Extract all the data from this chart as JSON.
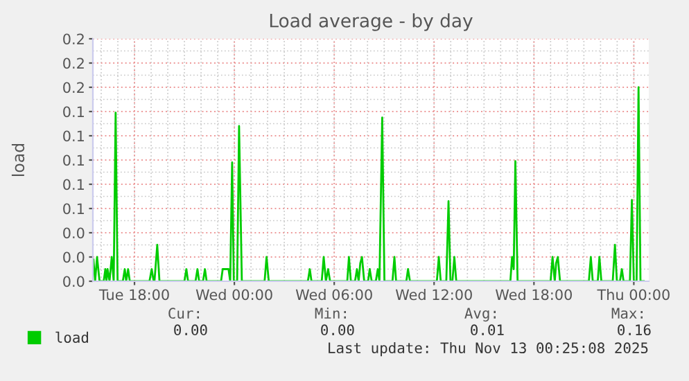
{
  "chart_data": {
    "type": "line",
    "title": "Load average - by day",
    "ylabel": "load",
    "x": [
      "2025-11-11T15:32",
      "2025-11-11T15:38",
      "2025-11-11T15:45",
      "2025-11-11T15:54",
      "2025-11-11T16:09",
      "2025-11-11T16:15",
      "2025-11-11T16:19",
      "2025-11-11T16:23",
      "2025-11-11T16:30",
      "2025-11-11T16:38",
      "2025-11-11T16:45",
      "2025-11-11T16:52",
      "2025-11-11T16:59",
      "2025-11-11T17:18",
      "2025-11-11T17:25",
      "2025-11-11T17:30",
      "2025-11-11T17:37",
      "2025-11-11T17:43",
      "2025-11-11T18:54",
      "2025-11-11T19:02",
      "2025-11-11T19:09",
      "2025-11-11T19:12",
      "2025-11-11T19:22",
      "2025-11-11T19:30",
      "2025-11-11T21:00",
      "2025-11-11T21:07",
      "2025-11-11T21:13",
      "2025-11-11T21:40",
      "2025-11-11T21:47",
      "2025-11-11T21:53",
      "2025-11-11T22:07",
      "2025-11-11T22:14",
      "2025-11-11T22:20",
      "2025-11-11T23:12",
      "2025-11-11T23:18",
      "2025-11-11T23:33",
      "2025-11-11T23:39",
      "2025-11-11T23:45",
      "2025-11-11T23:52",
      "2025-11-11T23:58",
      "2025-11-12T00:10",
      "2025-11-12T00:17",
      "2025-11-12T00:27",
      "2025-11-12T01:49",
      "2025-11-12T01:56",
      "2025-11-12T02:04",
      "2025-11-12T04:25",
      "2025-11-12T04:32",
      "2025-11-12T04:38",
      "2025-11-12T05:15",
      "2025-11-12T05:22",
      "2025-11-12T05:30",
      "2025-11-12T05:38",
      "2025-11-12T05:45",
      "2025-11-12T06:47",
      "2025-11-12T06:53",
      "2025-11-12T07:00",
      "2025-11-12T07:15",
      "2025-11-12T07:22",
      "2025-11-12T07:28",
      "2025-11-12T07:34",
      "2025-11-12T07:40",
      "2025-11-12T07:48",
      "2025-11-12T08:02",
      "2025-11-12T08:08",
      "2025-11-12T08:15",
      "2025-11-12T08:30",
      "2025-11-12T08:37",
      "2025-11-12T08:43",
      "2025-11-12T08:53",
      "2025-11-12T09:01",
      "2025-11-12T09:30",
      "2025-11-12T09:37",
      "2025-11-12T09:43",
      "2025-11-12T10:20",
      "2025-11-12T10:26",
      "2025-11-12T10:33",
      "2025-11-12T12:10",
      "2025-11-12T12:17",
      "2025-11-12T12:24",
      "2025-11-12T12:44",
      "2025-11-12T12:52",
      "2025-11-12T12:59",
      "2025-11-12T13:06",
      "2025-11-12T13:13",
      "2025-11-12T13:20",
      "2025-11-12T16:35",
      "2025-11-12T16:41",
      "2025-11-12T16:47",
      "2025-11-12T16:53",
      "2025-11-12T17:01",
      "2025-11-12T19:00",
      "2025-11-12T19:07",
      "2025-11-12T19:15",
      "2025-11-12T19:20",
      "2025-11-12T19:26",
      "2025-11-12T19:34",
      "2025-11-12T21:18",
      "2025-11-12T21:25",
      "2025-11-12T21:32",
      "2025-11-12T21:50",
      "2025-11-12T21:56",
      "2025-11-12T22:03",
      "2025-11-12T22:44",
      "2025-11-12T22:52",
      "2025-11-12T22:59",
      "2025-11-12T23:10",
      "2025-11-12T23:17",
      "2025-11-12T23:23",
      "2025-11-12T23:46",
      "2025-11-12T23:53",
      "2025-11-13T00:00",
      "2025-11-13T00:10",
      "2025-11-13T00:17",
      "2025-11-13T00:24",
      "2025-11-13T00:36"
    ],
    "series": [
      {
        "name": "load",
        "color": "#00cc00",
        "values": [
          0.018,
          0,
          0.02,
          0,
          0,
          0.01,
          0,
          0.01,
          0,
          0.02,
          0,
          0.139,
          0,
          0,
          0.01,
          0,
          0.01,
          0,
          0,
          0.01,
          0,
          0,
          0.03,
          0,
          0,
          0.01,
          0,
          0,
          0.01,
          0,
          0,
          0.01,
          0,
          0,
          0.01,
          0.01,
          0.01,
          0,
          0.098,
          0,
          0,
          0.128,
          0,
          0,
          0.02,
          0,
          0,
          0.01,
          0,
          0,
          0.02,
          0,
          0.01,
          0,
          0,
          0.02,
          0,
          0,
          0.01,
          0,
          0.015,
          0.02,
          0,
          0,
          0.01,
          0,
          0,
          0.01,
          0,
          0.135,
          0,
          0,
          0.02,
          0,
          0,
          0.01,
          0,
          0,
          0.02,
          0,
          0,
          0.066,
          0,
          0,
          0.02,
          0,
          0,
          0.02,
          0.01,
          0.099,
          0,
          0,
          0.02,
          0,
          0.015,
          0.02,
          0,
          0,
          0.02,
          0,
          0,
          0.02,
          0,
          0,
          0.03,
          0,
          0,
          0.01,
          0,
          0,
          0.067,
          0,
          0,
          0.16,
          0,
          0
        ]
      }
    ],
    "xlim": [
      "2025-11-11T15:30",
      "2025-11-13T00:54"
    ],
    "xticks": [
      {
        "value": "2025-11-11T18:00",
        "label": "Tue 18:00"
      },
      {
        "value": "2025-11-12T00:00",
        "label": "Wed 00:00"
      },
      {
        "value": "2025-11-12T06:00",
        "label": "Wed 06:00"
      },
      {
        "value": "2025-11-12T12:00",
        "label": "Wed 12:00"
      },
      {
        "value": "2025-11-12T18:00",
        "label": "Wed 18:00"
      },
      {
        "value": "2025-11-13T00:00",
        "label": "Thu 00:00"
      }
    ],
    "ylim": [
      0,
      0.2
    ],
    "yticks": [
      {
        "value": 0,
        "label": "0.0"
      },
      {
        "value": 0.02,
        "label": "0.0"
      },
      {
        "value": 0.04,
        "label": "0.0"
      },
      {
        "value": 0.06,
        "label": "0.1"
      },
      {
        "value": 0.08,
        "label": "0.1"
      },
      {
        "value": 0.1,
        "label": "0.1"
      },
      {
        "value": 0.12,
        "label": "0.1"
      },
      {
        "value": 0.14,
        "label": "0.1"
      },
      {
        "value": 0.16,
        "label": "0.2"
      },
      {
        "value": 0.18,
        "label": "0.2"
      },
      {
        "value": 0.2,
        "label": "0.2"
      }
    ],
    "grid": true,
    "legend": "bottom left",
    "marker": "none",
    "line_style": "solid",
    "annotations": [
      "Cur:",
      "Min:",
      "Avg:",
      "Max:",
      "0.00",
      "0.00",
      "0.01",
      "0.16",
      "Last update: Thu Nov 13 00:25:08 2025"
    ]
  }
}
